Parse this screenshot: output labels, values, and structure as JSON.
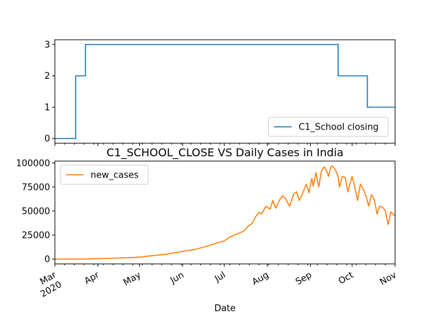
{
  "chart_data": [
    {
      "type": "line",
      "title": "",
      "xlabel": "",
      "ylabel": "",
      "legend": {
        "placement": "lower-right",
        "entries": [
          "C1_School closing"
        ]
      },
      "x_range": [
        "2020-03-01",
        "2020-11-01"
      ],
      "ylim": [
        -0.15,
        3.15
      ],
      "yticks": [
        0,
        1,
        2,
        3
      ],
      "grid": false,
      "series": [
        {
          "name": "C1_School closing",
          "color": "#1f77b4",
          "steps": [
            {
              "date": "2020-03-01",
              "value": 0
            },
            {
              "date": "2020-03-16",
              "value": 2
            },
            {
              "date": "2020-03-23",
              "value": 3
            },
            {
              "date": "2020-09-21",
              "value": 2
            },
            {
              "date": "2020-10-12",
              "value": 1
            },
            {
              "date": "2020-11-01",
              "value": 1
            }
          ]
        }
      ]
    },
    {
      "type": "line",
      "title": "C1_SCHOOL_CLOSE VS Daily Cases in India",
      "xlabel": "Date",
      "ylabel": "",
      "legend": {
        "placement": "upper-left",
        "entries": [
          "new_cases"
        ]
      },
      "x_range": [
        "2020-03-01",
        "2020-11-01"
      ],
      "ylim": [
        -5000,
        102000
      ],
      "yticks": [
        0,
        25000,
        50000,
        75000,
        100000
      ],
      "ytick_labels": [
        "0",
        "25000",
        "50000",
        "75000",
        "100000"
      ],
      "xticks": [
        {
          "date": "2020-03-01",
          "label": "Mar",
          "sublabel": "2020"
        },
        {
          "date": "2020-04-01",
          "label": "Apr"
        },
        {
          "date": "2020-05-01",
          "label": "May"
        },
        {
          "date": "2020-06-01",
          "label": "Jun"
        },
        {
          "date": "2020-07-01",
          "label": "Jul"
        },
        {
          "date": "2020-08-01",
          "label": "Aug"
        },
        {
          "date": "2020-09-01",
          "label": "Sep"
        },
        {
          "date": "2020-10-01",
          "label": "Oct"
        },
        {
          "date": "2020-11-01",
          "label": "Nov"
        }
      ],
      "grid": false,
      "series": [
        {
          "name": "new_cases",
          "color": "#ff7f0e",
          "points": [
            [
              "2020-03-01",
              0
            ],
            [
              "2020-03-15",
              20
            ],
            [
              "2020-03-25",
              100
            ],
            [
              "2020-04-01",
              400
            ],
            [
              "2020-04-10",
              800
            ],
            [
              "2020-04-20",
              1300
            ],
            [
              "2020-05-01",
              2000
            ],
            [
              "2020-05-10",
              3500
            ],
            [
              "2020-05-20",
              5000
            ],
            [
              "2020-06-01",
              8000
            ],
            [
              "2020-06-10",
              10000
            ],
            [
              "2020-06-20",
              14000
            ],
            [
              "2020-06-25",
              16500
            ],
            [
              "2020-07-01",
              19000
            ],
            [
              "2020-07-05",
              23000
            ],
            [
              "2020-07-10",
              26000
            ],
            [
              "2020-07-15",
              29000
            ],
            [
              "2020-07-18",
              34000
            ],
            [
              "2020-07-21",
              37000
            ],
            [
              "2020-07-24",
              45000
            ],
            [
              "2020-07-26",
              48500
            ],
            [
              "2020-07-28",
              47000
            ],
            [
              "2020-07-31",
              55000
            ],
            [
              "2020-08-03",
              52000
            ],
            [
              "2020-08-05",
              61000
            ],
            [
              "2020-08-07",
              53000
            ],
            [
              "2020-08-10",
              62000
            ],
            [
              "2020-08-12",
              66000
            ],
            [
              "2020-08-14",
              63000
            ],
            [
              "2020-08-17",
              55000
            ],
            [
              "2020-08-20",
              68000
            ],
            [
              "2020-08-22",
              70000
            ],
            [
              "2020-08-24",
              61000
            ],
            [
              "2020-08-26",
              67000
            ],
            [
              "2020-08-29",
              78000
            ],
            [
              "2020-08-31",
              69000
            ],
            [
              "2020-09-02",
              84000
            ],
            [
              "2020-09-03",
              76000
            ],
            [
              "2020-09-05",
              90000
            ],
            [
              "2020-09-07",
              75000
            ],
            [
              "2020-09-09",
              92000
            ],
            [
              "2020-09-11",
              96000
            ],
            [
              "2020-09-13",
              91000
            ],
            [
              "2020-09-14",
              86000
            ],
            [
              "2020-09-16",
              97000
            ],
            [
              "2020-09-17",
              96500
            ],
            [
              "2020-09-19",
              93000
            ],
            [
              "2020-09-21",
              86000
            ],
            [
              "2020-09-22",
              75000
            ],
            [
              "2020-09-24",
              86000
            ],
            [
              "2020-09-26",
              85000
            ],
            [
              "2020-09-28",
              70000
            ],
            [
              "2020-10-01",
              86000
            ],
            [
              "2020-10-03",
              75000
            ],
            [
              "2020-10-05",
              61000
            ],
            [
              "2020-10-07",
              78000
            ],
            [
              "2020-10-09",
              73000
            ],
            [
              "2020-10-11",
              66000
            ],
            [
              "2020-10-13",
              55000
            ],
            [
              "2020-10-15",
              67000
            ],
            [
              "2020-10-17",
              62000
            ],
            [
              "2020-10-19",
              47000
            ],
            [
              "2020-10-21",
              55000
            ],
            [
              "2020-10-23",
              54000
            ],
            [
              "2020-10-25",
              50000
            ],
            [
              "2020-10-27",
              36000
            ],
            [
              "2020-10-29",
              49000
            ],
            [
              "2020-11-01",
              45000
            ]
          ]
        }
      ]
    }
  ]
}
